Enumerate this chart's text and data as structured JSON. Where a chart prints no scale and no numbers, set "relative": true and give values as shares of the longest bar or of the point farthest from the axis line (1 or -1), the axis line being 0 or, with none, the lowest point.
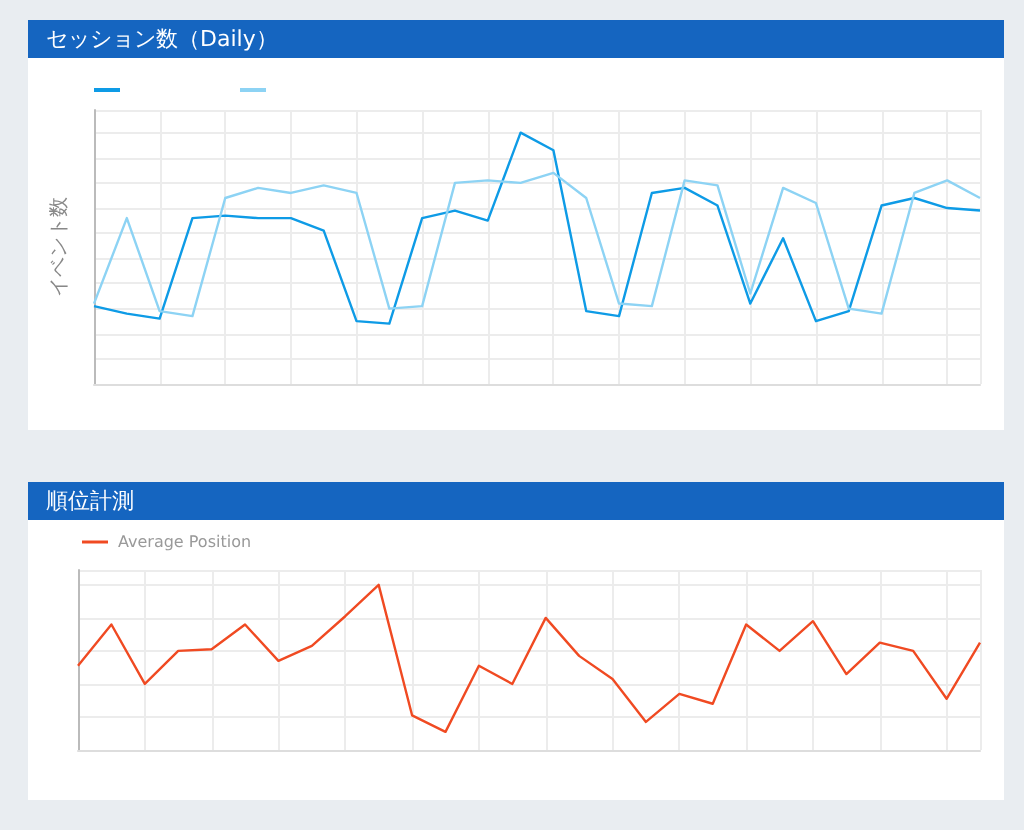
{
  "chart_data": [
    {
      "type": "line",
      "title": "セッション数（Daily）",
      "ylabel": "イベント数",
      "relative": true,
      "grid": true,
      "marker": "none",
      "categories": [
        null,
        null,
        null,
        null,
        null,
        null,
        null,
        null,
        null,
        null,
        null,
        null,
        null,
        null,
        null,
        null,
        null,
        null,
        null,
        null,
        null,
        null,
        null,
        null,
        null,
        null,
        null,
        null
      ],
      "series": [
        {
          "color": "#0e9be6",
          "values": [
            0.31,
            0.28,
            0.26,
            0.66,
            0.67,
            0.66,
            0.66,
            0.61,
            0.25,
            0.24,
            0.66,
            0.69,
            0.65,
            1,
            0.93,
            0.29,
            0.27,
            0.76,
            0.78,
            0.71,
            0.32,
            0.58,
            0.25,
            0.29,
            0.71,
            0.74,
            0.7,
            0.69
          ]
        },
        {
          "color": "#8dd3f4",
          "values": [
            0.32,
            0.66,
            0.29,
            0.27,
            0.74,
            0.78,
            0.76,
            0.79,
            0.76,
            0.3,
            0.31,
            0.8,
            0.81,
            0.8,
            0.84,
            0.74,
            0.32,
            0.31,
            0.81,
            0.79,
            0.36,
            0.78,
            0.72,
            0.3,
            0.28,
            0.76,
            0.81,
            0.74
          ]
        }
      ]
    },
    {
      "type": "line",
      "title": "順位計測",
      "relative": true,
      "grid": true,
      "legend": "top left",
      "marker": "none",
      "categories": [
        null,
        null,
        null,
        null,
        null,
        null,
        null,
        null,
        null,
        null,
        null,
        null,
        null,
        null,
        null,
        null,
        null,
        null,
        null,
        null,
        null,
        null,
        null,
        null,
        null,
        null,
        null,
        null
      ],
      "series": [
        {
          "name": "Average Position",
          "color": "#f04a22",
          "values": [
            0.51,
            0.76,
            0.4,
            0.6,
            0.61,
            0.76,
            0.54,
            0.63,
            0.81,
            1,
            0.21,
            0.11,
            0.51,
            0.4,
            0.8,
            0.57,
            0.43,
            0.17,
            0.34,
            0.28,
            0.76,
            0.6,
            0.78,
            0.46,
            0.65,
            0.6,
            0.31,
            0.65
          ]
        }
      ]
    }
  ]
}
